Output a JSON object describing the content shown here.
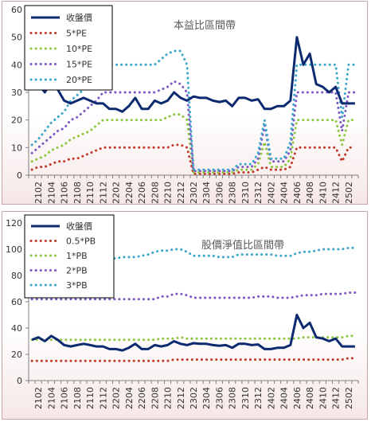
{
  "chart_data": [
    {
      "type": "line",
      "title": "本益比區間帶",
      "ylim": [
        0,
        60
      ],
      "yticks": [
        0,
        10,
        20,
        30,
        40,
        50,
        60
      ],
      "x_tick_labels": [
        "2102",
        "2104",
        "2106",
        "2108",
        "2110",
        "2112",
        "2202",
        "2204",
        "2206",
        "2208",
        "2210",
        "2212",
        "2302",
        "2304",
        "2306",
        "2308",
        "2310",
        "2312",
        "2402",
        "2404",
        "2406",
        "2408",
        "2410",
        "2412",
        "2502"
      ],
      "legend_position": "top-left",
      "series": [
        {
          "name": "收盤價",
          "color": "#0b2a6f",
          "style": "solid",
          "values": [
            31,
            33,
            30,
            34,
            31,
            27,
            26,
            27,
            28,
            27,
            26,
            26,
            24,
            24,
            23,
            25,
            28,
            24,
            24,
            27,
            26,
            27,
            30,
            28,
            27,
            28.5,
            28,
            28,
            27,
            26.5,
            27,
            25,
            28,
            28,
            27,
            27.5,
            24,
            24,
            25,
            25,
            27,
            50,
            40,
            44,
            33,
            32,
            30,
            32,
            26,
            26,
            26
          ]
        },
        {
          "name": "5*PE",
          "color": "#c0392b",
          "style": "dotted",
          "values": [
            2,
            3,
            3,
            4,
            5,
            5,
            6,
            6,
            7,
            8,
            9,
            10,
            10,
            10,
            10,
            10,
            10,
            10,
            10,
            10,
            10,
            10,
            11,
            11,
            10,
            0.5,
            0.5,
            0.5,
            0.5,
            0.5,
            0.5,
            0.5,
            1,
            1,
            1,
            2,
            3,
            2,
            2,
            2,
            3,
            10,
            10,
            10,
            10,
            10,
            10,
            10,
            5,
            10,
            10
          ]
        },
        {
          "name": "10*PE",
          "color": "#8dc63f",
          "style": "dotted",
          "values": [
            5,
            6,
            7,
            9,
            10,
            11,
            13,
            14,
            15,
            16,
            18,
            20,
            20,
            20,
            20,
            20,
            20,
            20,
            20,
            20,
            20,
            21,
            22,
            22,
            20,
            1,
            1,
            1,
            1,
            1,
            1,
            1,
            2,
            2,
            2,
            4,
            12,
            3,
            3,
            3,
            6,
            20,
            20,
            20,
            20,
            20,
            20,
            20,
            11,
            20,
            20
          ]
        },
        {
          "name": "15*PE",
          "color": "#7e57c2",
          "style": "dotted",
          "values": [
            8,
            10,
            12,
            14,
            16,
            17,
            20,
            21,
            23,
            25,
            27,
            30,
            30,
            30,
            30,
            30,
            30,
            30,
            30,
            30,
            31,
            32,
            34,
            33,
            30,
            1.5,
            1.5,
            1.5,
            1.5,
            1.5,
            1.5,
            1.5,
            3,
            3,
            3,
            6,
            18,
            5,
            5,
            5,
            9,
            30,
            30,
            30,
            30,
            30,
            30,
            30,
            16,
            30,
            30
          ]
        },
        {
          "name": "20*PE",
          "color": "#3aa6c8",
          "style": "dotted",
          "values": [
            11,
            13,
            16,
            19,
            21,
            23,
            27,
            29,
            31,
            34,
            37,
            40,
            40,
            40,
            40,
            40,
            40,
            40,
            40,
            40,
            42,
            44,
            45,
            45,
            40,
            2,
            2,
            2,
            2,
            2,
            2,
            2,
            4,
            4,
            4,
            8,
            20,
            6,
            6,
            6,
            12,
            40,
            40,
            40,
            40,
            40,
            40,
            40,
            21,
            40,
            40
          ]
        }
      ]
    },
    {
      "type": "line",
      "title": "股價淨值比區間帶",
      "ylim": [
        0,
        120
      ],
      "yticks": [
        0,
        20,
        40,
        60,
        80,
        100,
        120
      ],
      "x_tick_labels": [
        "2102",
        "2104",
        "2106",
        "2108",
        "2110",
        "2112",
        "2202",
        "2204",
        "2206",
        "2208",
        "2210",
        "2212",
        "2302",
        "2304",
        "2306",
        "2308",
        "2310",
        "2312",
        "2402",
        "2404",
        "2406",
        "2408",
        "2410",
        "2412",
        "2502"
      ],
      "legend_position": "top-left",
      "series": [
        {
          "name": "收盤價",
          "color": "#0b2a6f",
          "style": "solid",
          "values": [
            31,
            33,
            30,
            34,
            31,
            27,
            26,
            27,
            28,
            27,
            26,
            26,
            24,
            24,
            23,
            25,
            28,
            24,
            24,
            27,
            26,
            27,
            30,
            28,
            27,
            28.5,
            28,
            28,
            27,
            26.5,
            27,
            25,
            28,
            28,
            27,
            27.5,
            24,
            24,
            25,
            25,
            27,
            50,
            40,
            44,
            33,
            32,
            30,
            32,
            26,
            26,
            26
          ]
        },
        {
          "name": "0.5*PB",
          "color": "#c0392b",
          "style": "dotted",
          "values": [
            15,
            15,
            15,
            15,
            15,
            15,
            15,
            15,
            15,
            15,
            15,
            15,
            15,
            15,
            15,
            15,
            15,
            15,
            15,
            15,
            15,
            15,
            16,
            16,
            16,
            16,
            16,
            16,
            16,
            16,
            16,
            16,
            16,
            16,
            16,
            16,
            16,
            16,
            16,
            16,
            16,
            16,
            16,
            16,
            16,
            16,
            16,
            16,
            16,
            17,
            17
          ]
        },
        {
          "name": "1*PB",
          "color": "#8dc63f",
          "style": "dotted",
          "values": [
            31,
            31,
            31,
            31,
            31,
            31,
            31,
            31,
            31,
            31,
            31,
            31,
            31,
            31,
            31,
            31,
            31,
            31,
            31,
            31,
            32,
            32,
            32,
            33,
            32,
            32,
            32,
            32,
            32,
            32,
            32,
            32,
            32,
            32,
            32,
            32,
            32,
            32,
            32,
            32,
            32,
            32,
            33,
            33,
            33,
            33,
            33,
            33,
            33,
            34,
            34
          ]
        },
        {
          "name": "2*PB",
          "color": "#7e57c2",
          "style": "dotted",
          "values": [
            62,
            62,
            62,
            62,
            62,
            62,
            62,
            62,
            62,
            62,
            62,
            62,
            62,
            62,
            62,
            62,
            62,
            62,
            62,
            62,
            64,
            64,
            66,
            66,
            65,
            63,
            63,
            63,
            63,
            63,
            63,
            63,
            63,
            63,
            63,
            64,
            64,
            64,
            63,
            63,
            63,
            64,
            65,
            65,
            65,
            66,
            66,
            66,
            66,
            67,
            67
          ]
        },
        {
          "name": "3*PB",
          "color": "#3aa6c8",
          "style": "dotted",
          "values": [
            93,
            93,
            93,
            93,
            93,
            93,
            93,
            93,
            93,
            93,
            93,
            93,
            93,
            93,
            94,
            94,
            94,
            95,
            96,
            98,
            99,
            99,
            100,
            100,
            98,
            95,
            95,
            95,
            95,
            94,
            94,
            94,
            96,
            96,
            96,
            96,
            96,
            96,
            95,
            95,
            95,
            97,
            98,
            98,
            99,
            100,
            100,
            100,
            100,
            101,
            101
          ]
        }
      ]
    }
  ]
}
